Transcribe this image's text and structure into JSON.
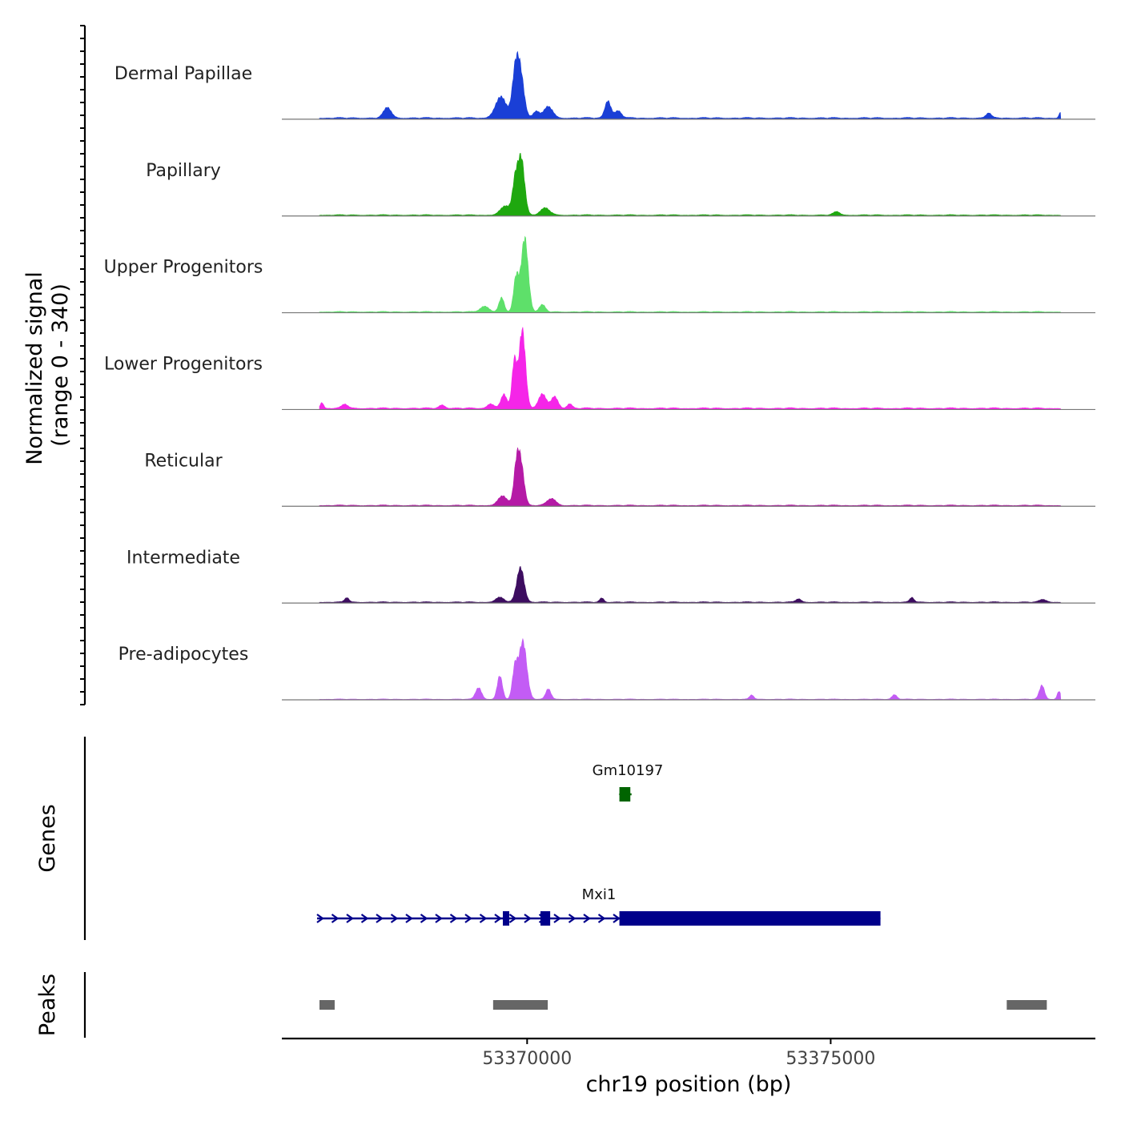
{
  "chart_data": {
    "type": "area",
    "title": "",
    "ylabel": "Normalized signal",
    "yrange_label": "(range 0 - 340)",
    "ylim": [
      0,
      340
    ],
    "xlabel": "chr19 position (bp)",
    "xlim": [
      53365960,
      53379360
    ],
    "xticks": [
      53370000,
      53375000
    ],
    "xtick_labels": [
      "53370000",
      "53375000"
    ],
    "x_start": 53366580,
    "x_end": 53378790,
    "tracks": [
      {
        "name": "Dermal Papillae",
        "color": "#1a3fd6",
        "baseline": 8,
        "peaks": [
          {
            "x": 53367700,
            "height": 45,
            "width": 90
          },
          {
            "x": 53369570,
            "height": 90,
            "width": 130
          },
          {
            "x": 53369880,
            "height": 210,
            "width": 90
          },
          {
            "x": 53369800,
            "height": 140,
            "width": 70
          },
          {
            "x": 53370350,
            "height": 50,
            "width": 100
          },
          {
            "x": 53370150,
            "height": 30,
            "width": 70
          },
          {
            "x": 53371330,
            "height": 75,
            "width": 70
          },
          {
            "x": 53371500,
            "height": 30,
            "width": 80
          },
          {
            "x": 53377600,
            "height": 22,
            "width": 60
          },
          {
            "x": 53378780,
            "height": 24,
            "width": 30
          }
        ]
      },
      {
        "name": "Papillary",
        "color": "#1fa80f",
        "baseline": 6,
        "peaks": [
          {
            "x": 53369650,
            "height": 40,
            "width": 120
          },
          {
            "x": 53369900,
            "height": 250,
            "width": 80
          },
          {
            "x": 53369800,
            "height": 120,
            "width": 60
          },
          {
            "x": 53370300,
            "height": 30,
            "width": 110
          },
          {
            "x": 53375100,
            "height": 14,
            "width": 80
          }
        ]
      },
      {
        "name": "Upper Progenitors",
        "color": "#5ee06a",
        "baseline": 6,
        "peaks": [
          {
            "x": 53369300,
            "height": 25,
            "width": 100
          },
          {
            "x": 53369580,
            "height": 60,
            "width": 60
          },
          {
            "x": 53369960,
            "height": 320,
            "width": 80
          },
          {
            "x": 53369820,
            "height": 150,
            "width": 60
          },
          {
            "x": 53370250,
            "height": 30,
            "width": 70
          }
        ]
      },
      {
        "name": "Lower Progenitors",
        "color": "#f525e8",
        "baseline": 8,
        "peaks": [
          {
            "x": 53366620,
            "height": 25,
            "width": 40
          },
          {
            "x": 53367000,
            "height": 18,
            "width": 70
          },
          {
            "x": 53368600,
            "height": 15,
            "width": 70
          },
          {
            "x": 53369400,
            "height": 20,
            "width": 80
          },
          {
            "x": 53369620,
            "height": 60,
            "width": 70
          },
          {
            "x": 53369920,
            "height": 340,
            "width": 75
          },
          {
            "x": 53369790,
            "height": 200,
            "width": 55
          },
          {
            "x": 53370250,
            "height": 60,
            "width": 90
          },
          {
            "x": 53370450,
            "height": 50,
            "width": 80
          },
          {
            "x": 53370700,
            "height": 20,
            "width": 60
          }
        ]
      },
      {
        "name": "Reticular",
        "color": "#b51aa6",
        "baseline": 6,
        "peaks": [
          {
            "x": 53369600,
            "height": 40,
            "width": 110
          },
          {
            "x": 53369890,
            "height": 190,
            "width": 80
          },
          {
            "x": 53369820,
            "height": 120,
            "width": 60
          },
          {
            "x": 53370400,
            "height": 30,
            "width": 100
          }
        ]
      },
      {
        "name": "Intermediate",
        "color": "#3d0d60",
        "baseline": 6,
        "peaks": [
          {
            "x": 53367030,
            "height": 20,
            "width": 50
          },
          {
            "x": 53369550,
            "height": 20,
            "width": 100
          },
          {
            "x": 53369890,
            "height": 150,
            "width": 85
          },
          {
            "x": 53371230,
            "height": 18,
            "width": 50
          },
          {
            "x": 53374470,
            "height": 15,
            "width": 60
          },
          {
            "x": 53376340,
            "height": 20,
            "width": 50
          },
          {
            "x": 53378500,
            "height": 12,
            "width": 80
          }
        ]
      },
      {
        "name": "Pre-adipocytes",
        "color": "#c35cf5",
        "baseline": 4,
        "peaks": [
          {
            "x": 53369200,
            "height": 50,
            "width": 70
          },
          {
            "x": 53369550,
            "height": 100,
            "width": 60
          },
          {
            "x": 53369930,
            "height": 250,
            "width": 90
          },
          {
            "x": 53369800,
            "height": 130,
            "width": 60
          },
          {
            "x": 53370350,
            "height": 45,
            "width": 60
          },
          {
            "x": 53373700,
            "height": 18,
            "width": 50
          },
          {
            "x": 53376050,
            "height": 20,
            "width": 60
          },
          {
            "x": 53378480,
            "height": 60,
            "width": 60
          },
          {
            "x": 53378760,
            "height": 35,
            "width": 40
          }
        ]
      }
    ],
    "genes_label": "Genes",
    "genes": [
      {
        "name": "Gm10197",
        "color": "#006400",
        "strand": "-",
        "start": 53371520,
        "end": 53371720,
        "exons": [
          [
            53371520,
            53371700
          ]
        ]
      },
      {
        "name": "Mxi1",
        "color": "#00008b",
        "strand": "+",
        "start": 53366540,
        "end": 53375820,
        "exons": [
          [
            53369600,
            53369700
          ],
          [
            53370220,
            53370380
          ],
          [
            53371520,
            53375820
          ]
        ]
      }
    ],
    "peaks_label": "Peaks",
    "peak_regions": [
      [
        53366580,
        53366830
      ],
      [
        53369440,
        53370340
      ],
      [
        53377900,
        53378560
      ]
    ]
  }
}
